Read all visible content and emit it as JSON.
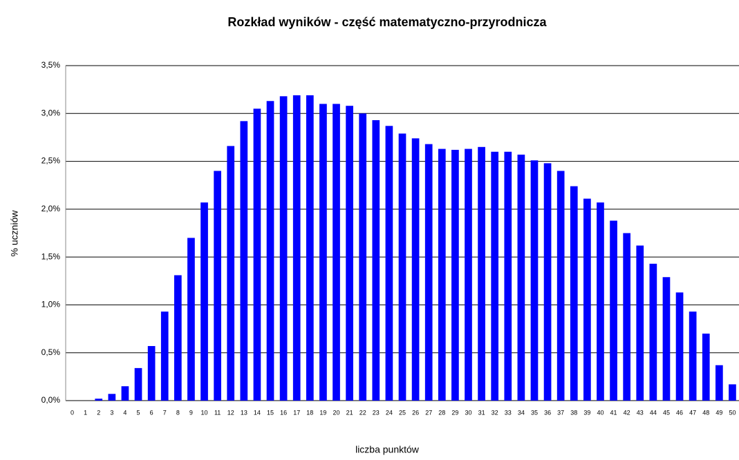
{
  "chart_data": {
    "type": "bar",
    "title": "Rozkład wyników - część matematyczno-przyrodnicza",
    "x_label": "liczba punktów",
    "y_label": "% uczniów",
    "categories": [
      "0",
      "1",
      "2",
      "3",
      "4",
      "5",
      "6",
      "7",
      "8",
      "9",
      "10",
      "11",
      "12",
      "13",
      "14",
      "15",
      "16",
      "17",
      "18",
      "19",
      "20",
      "21",
      "22",
      "23",
      "24",
      "25",
      "26",
      "27",
      "28",
      "29",
      "30",
      "31",
      "32",
      "33",
      "34",
      "35",
      "36",
      "37",
      "38",
      "39",
      "40",
      "41",
      "42",
      "43",
      "44",
      "45",
      "46",
      "47",
      "48",
      "49",
      "50"
    ],
    "values": [
      0,
      0,
      0.02,
      0.07,
      0.15,
      0.34,
      0.57,
      0.93,
      1.31,
      1.7,
      2.07,
      2.4,
      2.66,
      2.92,
      3.05,
      3.13,
      3.18,
      3.19,
      3.19,
      3.1,
      3.1,
      3.08,
      3.0,
      2.93,
      2.87,
      2.79,
      2.74,
      2.68,
      2.63,
      2.62,
      2.63,
      2.65,
      2.6,
      2.6,
      2.57,
      2.51,
      2.48,
      2.4,
      2.24,
      2.11,
      2.07,
      1.88,
      1.75,
      1.62,
      1.43,
      1.29,
      1.13,
      0.93,
      0.7,
      0.37,
      0.17
    ],
    "color": "#0000ff",
    "ylim": [
      0,
      3.5
    ],
    "yticks": [
      {
        "value": 0,
        "label": "0,0%"
      },
      {
        "value": 0.5,
        "label": "0,5%"
      },
      {
        "value": 1,
        "label": "1,0%"
      },
      {
        "value": 1.5,
        "label": "1,5%"
      },
      {
        "value": 2,
        "label": "2,0%"
      },
      {
        "value": 2.5,
        "label": "2,5%"
      },
      {
        "value": 3,
        "label": "3,0%"
      },
      {
        "value": 3.5,
        "label": "3,5%"
      }
    ],
    "grid": true
  }
}
